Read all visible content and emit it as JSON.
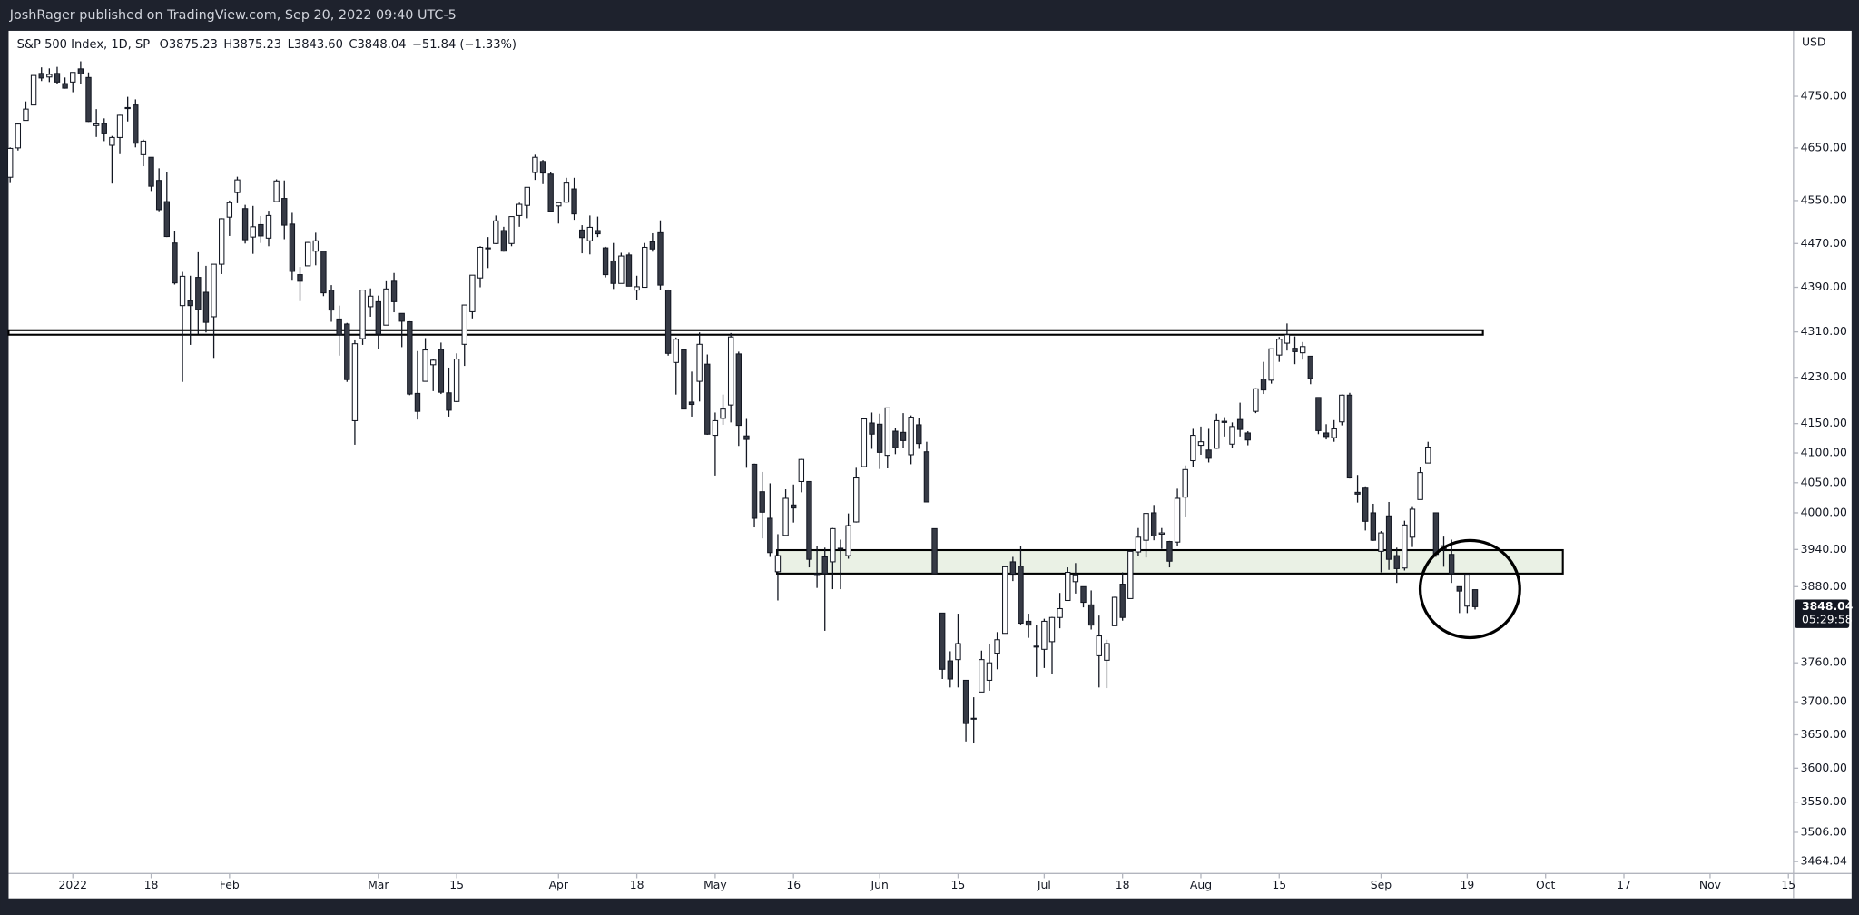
{
  "header": {
    "title": "JoshRager published on TradingView.com, Sep 20, 2022 09:40 UTC-5"
  },
  "chart_data": {
    "type": "candlestick",
    "legend": [
      "S&P 500 Index, 1D, SP",
      "O3875.23",
      "H3875.23",
      "L3843.60",
      "C3848.04",
      "−51.84 (−1.33%)"
    ],
    "currency": "USD",
    "log_scale": true,
    "grid": false,
    "colors": {
      "up": "#ffffff",
      "down": "#363a45",
      "wick": "#131722"
    },
    "ylim": [
      3447,
      4880
    ],
    "yticks": [
      {
        "value": 4750,
        "label": "4750.00"
      },
      {
        "value": 4650,
        "label": "4650.00"
      },
      {
        "value": 4550,
        "label": "4550.00"
      },
      {
        "value": 4470,
        "label": "4470.00"
      },
      {
        "value": 4390,
        "label": "4390.00"
      },
      {
        "value": 4310,
        "label": "4310.00"
      },
      {
        "value": 4230,
        "label": "4230.00"
      },
      {
        "value": 4150,
        "label": "4150.00"
      },
      {
        "value": 4100,
        "label": "4100.00"
      },
      {
        "value": 4050,
        "label": "4050.00"
      },
      {
        "value": 4000,
        "label": "4000.00"
      },
      {
        "value": 3940,
        "label": "3940.00"
      },
      {
        "value": 3880,
        "label": "3880.00"
      },
      {
        "value": 3760,
        "label": "3760.00"
      },
      {
        "value": 3700,
        "label": "3700.00"
      },
      {
        "value": 3650,
        "label": "3650.00"
      },
      {
        "value": 3600,
        "label": "3600.00"
      },
      {
        "value": 3550,
        "label": "3550.00"
      },
      {
        "value": 3506,
        "label": "3506.00"
      },
      3464.04
    ],
    "xlim": [
      -0.2,
      227.5
    ],
    "xticks": [
      {
        "value": 8,
        "label": "2022"
      },
      {
        "value": 18,
        "label": "18"
      },
      {
        "value": 28,
        "label": "Feb"
      },
      {
        "value": 47,
        "label": "Mar"
      },
      {
        "value": 57,
        "label": "15"
      },
      {
        "value": 70,
        "label": "Apr"
      },
      {
        "value": 80,
        "label": "18"
      },
      {
        "value": 90,
        "label": "May"
      },
      {
        "value": 100,
        "label": "16"
      },
      {
        "value": 111,
        "label": "Jun"
      },
      {
        "value": 121,
        "label": "15"
      },
      {
        "value": 132,
        "label": "Jul"
      },
      {
        "value": 142,
        "label": "18"
      },
      {
        "value": 152,
        "label": "Aug"
      },
      {
        "value": 162,
        "label": "15"
      },
      {
        "value": 175,
        "label": "Sep"
      },
      {
        "value": 186,
        "label": "19"
      },
      {
        "value": 196,
        "label": "Oct"
      },
      {
        "value": 206,
        "label": "17"
      },
      {
        "value": 217,
        "label": "Nov"
      },
      {
        "value": 227,
        "label": "15"
      }
    ],
    "ohlc": [
      [
        4594,
        4651,
        4583,
        4649
      ],
      [
        4650,
        4697,
        4645,
        4696
      ],
      [
        4703,
        4740,
        4703,
        4725
      ],
      [
        4733,
        4791,
        4733,
        4791
      ],
      [
        4795,
        4807,
        4780,
        4786
      ],
      [
        4788,
        4805,
        4778,
        4793
      ],
      [
        4795,
        4808,
        4775,
        4778
      ],
      [
        4775,
        4787,
        4765,
        4766
      ],
      [
        4778,
        4797,
        4758,
        4797
      ],
      [
        4804,
        4819,
        4775,
        4794
      ],
      [
        4787,
        4797,
        4700,
        4701
      ],
      [
        4693,
        4725,
        4671,
        4696
      ],
      [
        4697,
        4707,
        4663,
        4677
      ],
      [
        4655,
        4673,
        4582,
        4670
      ],
      [
        4670,
        4714,
        4638,
        4713
      ],
      [
        4728,
        4749,
        4701,
        4726
      ],
      [
        4733,
        4744,
        4651,
        4659
      ],
      [
        4637,
        4666,
        4615,
        4663
      ],
      [
        4632,
        4632,
        4568,
        4577
      ],
      [
        4588,
        4611,
        4530,
        4533
      ],
      [
        4548,
        4603,
        4482,
        4483
      ],
      [
        4471,
        4494,
        4395,
        4398
      ],
      [
        4357,
        4418,
        4222,
        4410
      ],
      [
        4366,
        4411,
        4287,
        4357
      ],
      [
        4408,
        4454,
        4306,
        4350
      ],
      [
        4381,
        4429,
        4309,
        4327
      ],
      [
        4337,
        4432,
        4264,
        4432
      ],
      [
        4432,
        4517,
        4414,
        4516
      ],
      [
        4519,
        4550,
        4484,
        4546
      ],
      [
        4565,
        4595,
        4545,
        4589
      ],
      [
        4535,
        4542,
        4470,
        4477
      ],
      [
        4482,
        4540,
        4451,
        4501
      ],
      [
        4505,
        4521,
        4471,
        4484
      ],
      [
        4480,
        4531,
        4465,
        4522
      ],
      [
        4548,
        4590,
        4548,
        4587
      ],
      [
        4554,
        4588,
        4478,
        4504
      ],
      [
        4506,
        4527,
        4402,
        4419
      ],
      [
        4413,
        4427,
        4365,
        4401
      ],
      [
        4429,
        4473,
        4429,
        4472
      ],
      [
        4456,
        4490,
        4430,
        4475
      ],
      [
        4456,
        4456,
        4374,
        4380
      ],
      [
        4385,
        4394,
        4328,
        4349
      ],
      [
        4333,
        4357,
        4268,
        4305
      ],
      [
        4324,
        4326,
        4222,
        4226
      ],
      [
        4155,
        4295,
        4114,
        4289
      ],
      [
        4298,
        4385,
        4287,
        4385
      ],
      [
        4355,
        4388,
        4337,
        4374
      ],
      [
        4364,
        4375,
        4279,
        4306
      ],
      [
        4322,
        4401,
        4322,
        4387
      ],
      [
        4401,
        4416,
        4345,
        4364
      ],
      [
        4343,
        4343,
        4283,
        4329
      ],
      [
        4328,
        4329,
        4199,
        4201
      ],
      [
        4202,
        4276,
        4157,
        4171
      ],
      [
        4223,
        4299,
        4223,
        4278
      ],
      [
        4252,
        4262,
        4206,
        4260
      ],
      [
        4279,
        4291,
        4201,
        4204
      ],
      [
        4203,
        4247,
        4162,
        4173
      ],
      [
        4188,
        4272,
        4187,
        4262
      ],
      [
        4288,
        4358,
        4250,
        4358
      ],
      [
        4346,
        4412,
        4334,
        4412
      ],
      [
        4407,
        4465,
        4390,
        4463
      ],
      [
        4462,
        4482,
        4425,
        4461
      ],
      [
        4470,
        4522,
        4469,
        4512
      ],
      [
        4494,
        4501,
        4455,
        4456
      ],
      [
        4470,
        4520,
        4465,
        4520
      ],
      [
        4522,
        4546,
        4501,
        4543
      ],
      [
        4541,
        4575,
        4517,
        4575
      ],
      [
        4603,
        4637,
        4589,
        4632
      ],
      [
        4624,
        4627,
        4581,
        4602
      ],
      [
        4600,
        4603,
        4530,
        4530
      ],
      [
        4540,
        4548,
        4507,
        4546
      ],
      [
        4547,
        4593,
        4546,
        4583
      ],
      [
        4572,
        4593,
        4514,
        4525
      ],
      [
        4495,
        4504,
        4452,
        4481
      ],
      [
        4475,
        4522,
        4450,
        4500
      ],
      [
        4494,
        4520,
        4482,
        4488
      ],
      [
        4462,
        4464,
        4408,
        4413
      ],
      [
        4438,
        4471,
        4387,
        4397
      ],
      [
        4397,
        4453,
        4397,
        4447
      ],
      [
        4449,
        4453,
        4392,
        4392
      ],
      [
        4385,
        4411,
        4367,
        4391
      ],
      [
        4390,
        4471,
        4390,
        4463
      ],
      [
        4473,
        4489,
        4455,
        4460
      ],
      [
        4490,
        4513,
        4385,
        4394
      ],
      [
        4385,
        4386,
        4268,
        4272
      ],
      [
        4256,
        4300,
        4200,
        4297
      ],
      [
        4278,
        4278,
        4175,
        4175
      ],
      [
        4187,
        4240,
        4162,
        4183
      ],
      [
        4223,
        4309,
        4188,
        4288
      ],
      [
        4253,
        4270,
        4131,
        4132
      ],
      [
        4130,
        4169,
        4062,
        4155
      ],
      [
        4159,
        4200,
        4148,
        4175
      ],
      [
        4182,
        4308,
        4152,
        4301
      ],
      [
        4271,
        4275,
        4112,
        4147
      ],
      [
        4129,
        4158,
        4075,
        4123
      ],
      [
        4081,
        4082,
        3976,
        3991
      ],
      [
        4035,
        4068,
        3958,
        4001
      ],
      [
        3991,
        4049,
        3928,
        3935
      ],
      [
        3904,
        3965,
        3858,
        3930
      ],
      [
        3963,
        4039,
        3963,
        4024
      ],
      [
        4013,
        4047,
        3984,
        4008
      ],
      [
        4052,
        4090,
        4034,
        4089
      ],
      [
        4052,
        4052,
        3911,
        3924
      ],
      [
        3900,
        3946,
        3878,
        3901
      ],
      [
        3928,
        3943,
        3810,
        3901
      ],
      [
        3920,
        3975,
        3876,
        3974
      ],
      [
        3942,
        3956,
        3876,
        3941
      ],
      [
        3930,
        3999,
        3925,
        3979
      ],
      [
        3985,
        4075,
        3984,
        4058
      ],
      [
        4077,
        4158,
        4077,
        4158
      ],
      [
        4151,
        4169,
        4107,
        4132
      ],
      [
        4149,
        4167,
        4073,
        4101
      ],
      [
        4096,
        4177,
        4074,
        4177
      ],
      [
        4137,
        4143,
        4098,
        4109
      ],
      [
        4135,
        4168,
        4109,
        4121
      ],
      [
        4097,
        4164,
        4081,
        4161
      ],
      [
        4148,
        4160,
        4107,
        4116
      ],
      [
        4102,
        4119,
        4018,
        4018
      ],
      [
        3974,
        3974,
        3900,
        3901
      ],
      [
        3838,
        3838,
        3735,
        3750
      ],
      [
        3763,
        3778,
        3722,
        3735
      ],
      [
        3765,
        3837,
        3722,
        3790
      ],
      [
        3733,
        3733,
        3640,
        3667
      ],
      [
        3675,
        3707,
        3637,
        3675
      ],
      [
        3715,
        3779,
        3715,
        3765
      ],
      [
        3733,
        3790,
        3717,
        3760
      ],
      [
        3775,
        3808,
        3750,
        3796
      ],
      [
        3806,
        3913,
        3806,
        3912
      ],
      [
        3920,
        3928,
        3889,
        3900
      ],
      [
        3913,
        3946,
        3820,
        3822
      ],
      [
        3825,
        3837,
        3799,
        3819
      ],
      [
        3786,
        3819,
        3738,
        3785
      ],
      [
        3781,
        3829,
        3752,
        3825
      ],
      [
        3793,
        3832,
        3742,
        3831
      ],
      [
        3831,
        3870,
        3814,
        3845
      ],
      [
        3858,
        3911,
        3858,
        3903
      ],
      [
        3888,
        3918,
        3869,
        3899
      ],
      [
        3880,
        3880,
        3847,
        3855
      ],
      [
        3851,
        3874,
        3812,
        3819
      ],
      [
        3771,
        3834,
        3722,
        3802
      ],
      [
        3764,
        3796,
        3721,
        3790
      ],
      [
        3818,
        3864,
        3818,
        3863
      ],
      [
        3884,
        3903,
        3826,
        3831
      ],
      [
        3861,
        3938,
        3861,
        3937
      ],
      [
        3936,
        3975,
        3929,
        3960
      ],
      [
        3955,
        3999,
        3927,
        3999
      ],
      [
        4000,
        4013,
        3955,
        3962
      ],
      [
        3965,
        3975,
        3941,
        3967
      ],
      [
        3953,
        3954,
        3911,
        3921
      ],
      [
        3952,
        4040,
        3946,
        4024
      ],
      [
        4026,
        4079,
        3994,
        4072
      ],
      [
        4087,
        4141,
        4077,
        4130
      ],
      [
        4113,
        4145,
        4097,
        4119
      ],
      [
        4105,
        4141,
        4084,
        4091
      ],
      [
        4108,
        4167,
        4107,
        4155
      ],
      [
        4154,
        4161,
        4128,
        4152
      ],
      [
        4115,
        4152,
        4108,
        4145
      ],
      [
        4157,
        4186,
        4128,
        4140
      ],
      [
        4134,
        4137,
        4113,
        4122
      ],
      [
        4171,
        4211,
        4168,
        4210
      ],
      [
        4227,
        4257,
        4201,
        4208
      ],
      [
        4225,
        4280,
        4219,
        4280
      ],
      [
        4269,
        4301,
        4257,
        4297
      ],
      [
        4290,
        4325,
        4277,
        4305
      ],
      [
        4281,
        4302,
        4253,
        4275
      ],
      [
        4273,
        4292,
        4261,
        4284
      ],
      [
        4267,
        4267,
        4218,
        4228
      ],
      [
        4195,
        4195,
        4132,
        4138
      ],
      [
        4134,
        4149,
        4123,
        4128
      ],
      [
        4126,
        4156,
        4119,
        4141
      ],
      [
        4153,
        4200,
        4147,
        4199
      ],
      [
        4199,
        4203,
        4057,
        4058
      ],
      [
        4034,
        4063,
        4017,
        4031
      ],
      [
        4041,
        4044,
        3971,
        3986
      ],
      [
        4000,
        4015,
        3954,
        3955
      ],
      [
        3937,
        3970,
        3903,
        3967
      ],
      [
        3995,
        4018,
        3907,
        3924
      ],
      [
        3930,
        3943,
        3886,
        3909
      ],
      [
        3910,
        3987,
        3906,
        3980
      ],
      [
        3960,
        4011,
        3944,
        4006
      ],
      [
        4022,
        4076,
        4022,
        4067
      ],
      [
        4083,
        4119,
        4083,
        4110
      ],
      [
        4000,
        4000,
        3928,
        3932
      ],
      [
        3941,
        3961,
        3912,
        3946
      ],
      [
        3932,
        3956,
        3886,
        3901
      ],
      [
        3880,
        3880,
        3838,
        3873
      ],
      [
        3849,
        3901,
        3838,
        3900
      ],
      [
        3875.23,
        3875.23,
        3843.6,
        3848.04
      ]
    ],
    "last_price": 3848.04,
    "countdown": "05:29:58",
    "zones": [
      {
        "top": 4313,
        "bottom": 4305,
        "from": -0.2,
        "to": 188,
        "color": "#ffffff"
      },
      {
        "top": 3939,
        "bottom": 3901,
        "from": 97.9,
        "to": 198.2,
        "color": "#e6efe1"
      }
    ]
  }
}
